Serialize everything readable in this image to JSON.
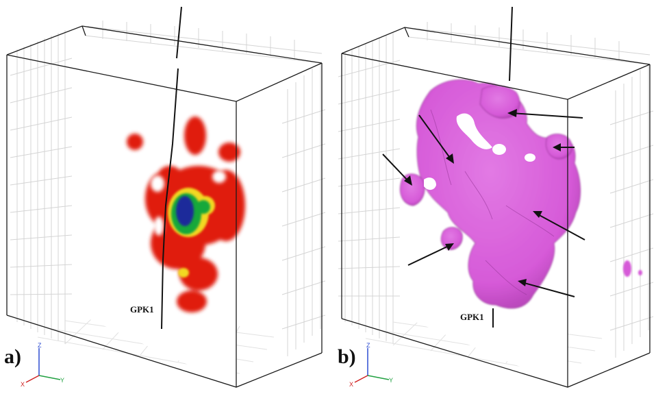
{
  "panel_a": {
    "label": "a)",
    "well_label": "GPK1",
    "axes": {
      "z": "Z",
      "x": "X",
      "y": "Y"
    },
    "colors": {
      "outer": "#e01a10",
      "mid": "#f2d820",
      "inner": "#18a83a",
      "core": "#1c2a9a"
    }
  },
  "panel_b": {
    "label": "b)",
    "well_label": "GPK1",
    "axes": {
      "z": "Z",
      "x": "X",
      "y": "Y"
    },
    "colors": {
      "surface": "#d65ad8",
      "shadow": "#a63aa8"
    }
  },
  "axis_colors": {
    "z": "#2a4ad0",
    "x": "#d02020",
    "y": "#20a040"
  }
}
